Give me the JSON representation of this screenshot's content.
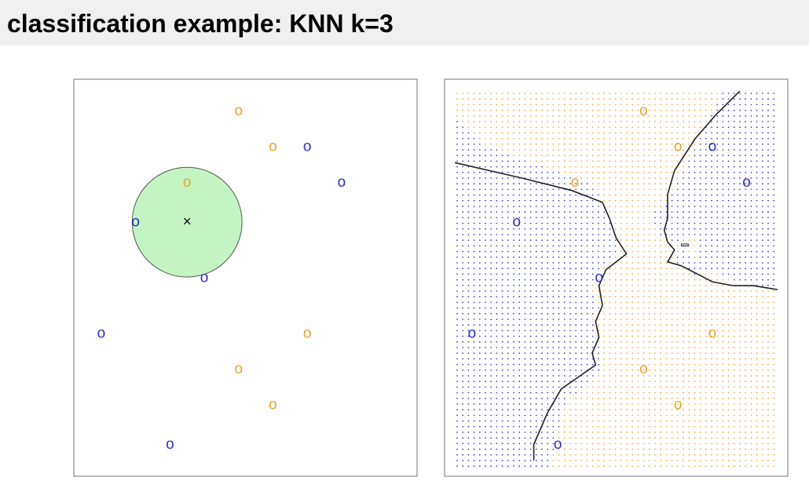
{
  "slide": {
    "title": "classification example: KNN k=3"
  },
  "colors": {
    "class_blue": "#2f2fc2",
    "class_orange": "#eca42a",
    "neighborhood_fill": "#c3f5c3",
    "boundary": "#222222"
  },
  "chart_data": [
    {
      "type": "scatter",
      "title": "",
      "xlabel": "",
      "ylabel": "",
      "xlim": [
        0,
        1
      ],
      "ylim": [
        0,
        1
      ],
      "grid": false,
      "marker_text": "o",
      "series": [
        {
          "color": "#eca42a",
          "points": [
            [
              0.48,
              0.92
            ],
            [
              0.58,
              0.83
            ],
            [
              0.33,
              0.74
            ],
            [
              0.68,
              0.36
            ],
            [
              0.48,
              0.27
            ],
            [
              0.58,
              0.18
            ]
          ]
        },
        {
          "color": "#2f2fc2",
          "points": [
            [
              0.68,
              0.83
            ],
            [
              0.78,
              0.74
            ],
            [
              0.18,
              0.64
            ],
            [
              0.38,
              0.5
            ],
            [
              0.08,
              0.36
            ],
            [
              0.28,
              0.08
            ]
          ]
        }
      ],
      "query_point": {
        "x": 0.33,
        "y": 0.64,
        "marker_text": "×"
      },
      "neighborhood": {
        "center": [
          0.33,
          0.64
        ],
        "radius": 0.16,
        "k": 3
      }
    },
    {
      "type": "scatter",
      "title": "",
      "xlabel": "",
      "ylabel": "",
      "xlim": [
        0,
        1
      ],
      "ylim": [
        0,
        1
      ],
      "grid": false,
      "marker_text": "o",
      "background": "dotted grid of predicted class at each point",
      "series": [
        {
          "color": "#eca42a",
          "points": [
            [
              0.58,
              0.92
            ],
            [
              0.68,
              0.83
            ],
            [
              0.38,
              0.74
            ],
            [
              0.78,
              0.36
            ],
            [
              0.58,
              0.27
            ],
            [
              0.68,
              0.18
            ]
          ]
        },
        {
          "color": "#2f2fc2",
          "points": [
            [
              0.78,
              0.83
            ],
            [
              0.88,
              0.74
            ],
            [
              0.21,
              0.64
            ],
            [
              0.45,
              0.5
            ],
            [
              0.08,
              0.36
            ],
            [
              0.33,
              0.08
            ]
          ]
        }
      ],
      "decision_boundary": [
        [
          [
            0.03,
            0.79
          ],
          [
            0.23,
            0.75
          ],
          [
            0.37,
            0.72
          ],
          [
            0.46,
            0.69
          ],
          [
            0.48,
            0.65
          ],
          [
            0.5,
            0.6
          ],
          [
            0.53,
            0.56
          ],
          [
            0.47,
            0.52
          ],
          [
            0.45,
            0.48
          ],
          [
            0.46,
            0.43
          ],
          [
            0.44,
            0.39
          ],
          [
            0.45,
            0.35
          ],
          [
            0.43,
            0.31
          ],
          [
            0.44,
            0.28
          ],
          [
            0.39,
            0.25
          ],
          [
            0.34,
            0.22
          ],
          [
            0.3,
            0.16
          ],
          [
            0.26,
            0.08
          ],
          [
            0.26,
            0.04
          ]
        ],
        [
          [
            0.86,
            0.97
          ],
          [
            0.79,
            0.91
          ],
          [
            0.73,
            0.85
          ],
          [
            0.67,
            0.77
          ],
          [
            0.65,
            0.71
          ],
          [
            0.65,
            0.65
          ],
          [
            0.64,
            0.62
          ],
          [
            0.65,
            0.59
          ],
          [
            0.67,
            0.57
          ],
          [
            0.65,
            0.54
          ],
          [
            0.69,
            0.53
          ],
          [
            0.78,
            0.49
          ],
          [
            0.84,
            0.48
          ],
          [
            0.9,
            0.48
          ],
          [
            0.97,
            0.47
          ]
        ]
      ],
      "decision_boundary_island": [
        [
          0.69,
          0.58
        ],
        [
          0.71,
          0.58
        ],
        [
          0.71,
          0.585
        ],
        [
          0.69,
          0.585
        ]
      ]
    }
  ]
}
